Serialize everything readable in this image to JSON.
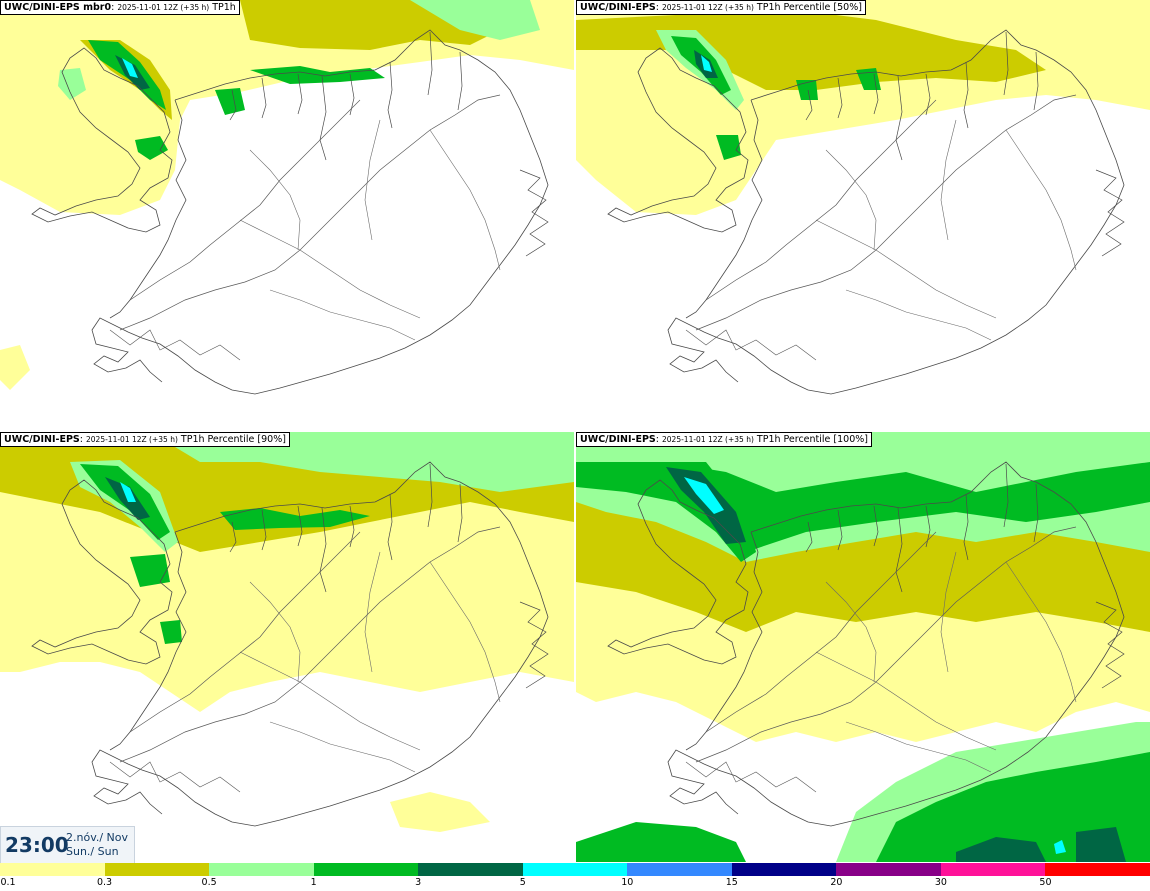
{
  "panels": [
    {
      "model": "UWC/DINI-EPS mbr0",
      "run": "2025-11-01 12Z (+35 h)",
      "product": "TP1h"
    },
    {
      "model": "UWC/DINI-EPS",
      "run": "2025-11-01 12Z (+35 h)",
      "product": "TP1h Percentile [50%]"
    },
    {
      "model": "UWC/DINI-EPS",
      "run": "2025-11-01 12Z (+35 h)",
      "product": "TP1h Percentile [90%]"
    },
    {
      "model": "UWC/DINI-EPS",
      "run": "2025-11-01 12Z (+35 h)",
      "product": "TP1h Percentile [100%]"
    }
  ],
  "valid_time": {
    "time": "23:00",
    "date_line1": "2.nóv./ Nov",
    "date_line2": "Sun./ Sun"
  },
  "colorbar": {
    "labels": [
      "0.1",
      "0.3",
      "0.5",
      "1",
      "3",
      "5",
      "10",
      "15",
      "20",
      "30",
      "50"
    ],
    "colors": [
      "#ffff99",
      "#cccc00",
      "#99ff99",
      "#00bb22",
      "#006644",
      "#00ffff",
      "#3388ff",
      "#000088",
      "#880088",
      "#ff1199",
      "#ff0000"
    ]
  }
}
